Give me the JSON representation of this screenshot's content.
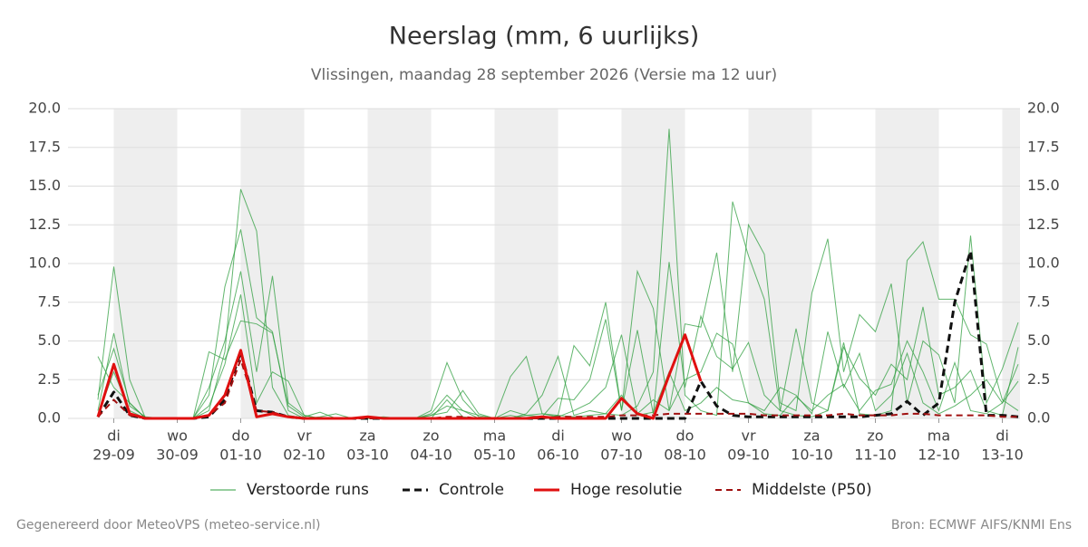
{
  "chart_data": {
    "type": "line",
    "title": "Neerslag (mm, 6 uurlijks)",
    "subtitle": "Vlissingen, maandag 28 september 2026 (Versie ma 12 uur)",
    "categories": [
      null,
      "29-09",
      null,
      null,
      null,
      "30-09",
      null,
      null,
      null,
      "01-10",
      null,
      null,
      null,
      "02-10",
      null,
      null,
      null,
      "03-10",
      null,
      null,
      null,
      "04-10",
      null,
      null,
      null,
      "05-10",
      null,
      null,
      null,
      "06-10",
      null,
      null,
      null,
      "07-10",
      null,
      null,
      null,
      "08-10",
      null,
      null,
      null,
      "09-10",
      null,
      null,
      null,
      "10-10",
      null,
      null,
      null,
      "11-10",
      null,
      null,
      null,
      "12-10",
      null,
      null,
      null,
      "13-10",
      null
    ],
    "weekdays": [
      null,
      "di",
      null,
      null,
      null,
      "wo",
      null,
      null,
      null,
      "do",
      null,
      null,
      null,
      "vr",
      null,
      null,
      null,
      "za",
      null,
      null,
      null,
      "zo",
      null,
      null,
      null,
      "ma",
      null,
      null,
      null,
      "di",
      null,
      null,
      null,
      "wo",
      null,
      null,
      null,
      "do",
      null,
      null,
      null,
      "vr",
      null,
      null,
      null,
      "za",
      null,
      null,
      null,
      "zo",
      null,
      null,
      null,
      "ma",
      null,
      null,
      null,
      "di",
      null
    ],
    "ylim": [
      0,
      20
    ],
    "yticks": [
      {
        "value": 0,
        "label": "0.0"
      },
      {
        "value": 2.5,
        "label": "2.5"
      },
      {
        "value": 5,
        "label": "5.0"
      },
      {
        "value": 7.5,
        "label": "7.5"
      },
      {
        "value": 10,
        "label": "10.0"
      },
      {
        "value": 12.5,
        "label": "12.5"
      },
      {
        "value": 15,
        "label": "15.0"
      },
      {
        "value": 17.5,
        "label": "17.5"
      },
      {
        "value": 20,
        "label": "20.0"
      }
    ],
    "grid": true,
    "ensemble": {
      "name": "Verstoorde runs",
      "color": "#2e9e3e",
      "members": [
        [
          1.2,
          9.8,
          2.5,
          0,
          0,
          0,
          0,
          0.5,
          4.3,
          14.8,
          12.1,
          2.0,
          0.2,
          0,
          0,
          0,
          0,
          0,
          0,
          0,
          0,
          0.5,
          3.6,
          1.2,
          0.1,
          0,
          0,
          0.3,
          1.5,
          4.0,
          0.2,
          0.5,
          0.3,
          0.2,
          0.8,
          3.0,
          18.7,
          1.5,
          0.5,
          0.2,
          14.0,
          10.5,
          7.7,
          0.5,
          0.2,
          0.1,
          0.5,
          4.9,
          0.3,
          0.2,
          0.5,
          10.2,
          11.4,
          7.7,
          7.7,
          5.4,
          4.8,
          1.2,
          0.5
        ],
        [
          0.5,
          5.5,
          0.8,
          0.1,
          0,
          0,
          0,
          1.5,
          8.5,
          12.2,
          6.5,
          5.6,
          0.5,
          0,
          0.1,
          0.3,
          0,
          0,
          0.1,
          0,
          0,
          0.2,
          0.4,
          1.8,
          0.3,
          0,
          2.7,
          4.0,
          0.3,
          0.2,
          4.7,
          3.4,
          7.5,
          0.5,
          9.5,
          7.1,
          0.5,
          6.1,
          5.9,
          10.7,
          3.0,
          12.5,
          10.6,
          1.0,
          0.5,
          8.1,
          11.6,
          3.0,
          6.7,
          5.6,
          8.7,
          1.0,
          5.0,
          4.1,
          1.0,
          11.8,
          1.0,
          3.2,
          6.2
        ],
        [
          4.0,
          2.0,
          1.0,
          0,
          0,
          0,
          0,
          2.0,
          5.0,
          9.5,
          3.0,
          9.2,
          1.0,
          0.2,
          0,
          0,
          0,
          0,
          0,
          0,
          0,
          0,
          1.2,
          0.1,
          0,
          0,
          0.5,
          0.2,
          0.1,
          1.3,
          1.2,
          2.5,
          6.4,
          0.5,
          5.7,
          0.3,
          10.1,
          2.0,
          6.6,
          4.0,
          3.2,
          4.9,
          1.5,
          0.5,
          5.8,
          1.0,
          0.5,
          4.6,
          2.6,
          1.5,
          3.5,
          2.5,
          7.2,
          1.5,
          2.0,
          3.1,
          0.5,
          0.2,
          4.6
        ],
        [
          0.2,
          3.0,
          0.5,
          0,
          0,
          0,
          0,
          0.8,
          3.5,
          8.0,
          1.0,
          3.0,
          2.4,
          0.2,
          0,
          0,
          0,
          0,
          0,
          0,
          0,
          0.2,
          0.8,
          0.5,
          0,
          0,
          0,
          0.2,
          0.3,
          0.1,
          0.5,
          1.0,
          2.0,
          5.4,
          0.3,
          1.2,
          0.5,
          2.5,
          3.0,
          5.5,
          4.8,
          1.0,
          0.5,
          2.0,
          1.5,
          0.3,
          5.6,
          2.0,
          4.2,
          0.5,
          1.5,
          4.2,
          1.0,
          0.3,
          0.8,
          1.5,
          2.5,
          1.0,
          2.4
        ],
        [
          1.5,
          4.5,
          1.0,
          0,
          0,
          0,
          0,
          4.3,
          3.8,
          6.3,
          6.1,
          5.5,
          0.8,
          0.1,
          0.4,
          0,
          0,
          0,
          0,
          0,
          0,
          0.3,
          1.5,
          0.5,
          0.2,
          0,
          0.2,
          0,
          0,
          0.2,
          0.1,
          0.2,
          0.3,
          1.5,
          0.2,
          0.4,
          3.0,
          0.5,
          1.0,
          2.0,
          1.2,
          1.0,
          0.3,
          0.2,
          1.4,
          0.5,
          1.5,
          2.2,
          0.5,
          1.8,
          2.2,
          5.0,
          3.0,
          0.5,
          3.6,
          0.5,
          0.3,
          1.0,
          3.5
        ]
      ]
    },
    "series": [
      {
        "name": "Controle",
        "color": "#111111",
        "dash": "8,5",
        "width": 3,
        "values": [
          0.1,
          1.7,
          0.2,
          0,
          0,
          0,
          0,
          0.1,
          1.2,
          4.3,
          0.5,
          0.4,
          0.1,
          0,
          0,
          0,
          0,
          0,
          0,
          0,
          0,
          0,
          0,
          0,
          0,
          0,
          0,
          0,
          0,
          0,
          0,
          0,
          0,
          0,
          0,
          0,
          0,
          0,
          2.4,
          0.8,
          0.2,
          0.1,
          0.1,
          0.1,
          0.1,
          0.1,
          0.1,
          0.1,
          0.1,
          0.2,
          0.3,
          1.1,
          0.2,
          1.0,
          7.5,
          10.8,
          0.2,
          0.2,
          0.1
        ]
      },
      {
        "name": "Hoge resolutie",
        "color": "#e01010",
        "dash": null,
        "width": 3,
        "values": [
          0.1,
          3.5,
          0.3,
          0,
          0,
          0,
          0,
          0.2,
          1.5,
          4.4,
          0.1,
          0.3,
          0.1,
          0,
          0,
          0,
          0,
          0.1,
          0,
          0,
          0,
          0,
          0,
          0,
          0,
          0,
          0,
          0,
          0.1,
          0,
          0,
          0,
          0,
          1.3,
          0.3,
          0,
          2.8,
          5.4,
          2.4,
          null,
          null,
          null,
          null,
          null,
          null,
          null,
          null,
          null,
          null,
          null,
          null,
          null,
          null,
          null,
          null,
          null,
          null,
          null,
          null
        ]
      },
      {
        "name": "Middelste (P50)",
        "color": "#a01010",
        "dash": "7,5",
        "width": 2,
        "values": [
          0.1,
          1.2,
          0.2,
          0,
          0,
          0,
          0,
          0.2,
          1.0,
          3.8,
          0.5,
          0.4,
          0.1,
          0,
          0,
          0,
          0,
          0,
          0,
          0,
          0,
          0,
          0.1,
          0.1,
          0,
          0,
          0,
          0,
          0,
          0.1,
          0.1,
          0.1,
          0.1,
          0.2,
          0.2,
          0.2,
          0.3,
          0.3,
          0.3,
          0.3,
          0.3,
          0.3,
          0.2,
          0.2,
          0.2,
          0.2,
          0.2,
          0.3,
          0.2,
          0.2,
          0.2,
          0.3,
          0.3,
          0.2,
          0.2,
          0.2,
          0.2,
          0.1,
          0.1
        ]
      }
    ],
    "footer_left": "Gegenereerd door MeteoVPS (meteo-service.nl)",
    "footer_right": "Bron: ECMWF AIFS/KNMI Ens"
  }
}
